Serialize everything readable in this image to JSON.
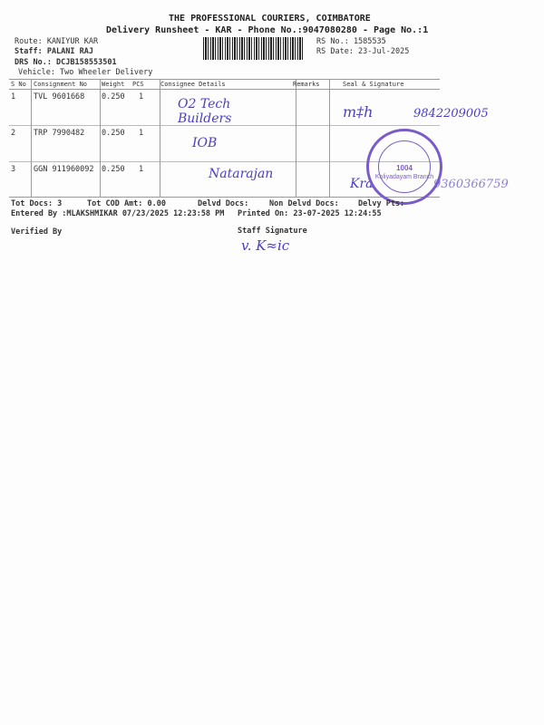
{
  "header": {
    "company": "THE PROFESSIONAL COURIERS, COIMBATORE",
    "subtitle": "Delivery Runsheet - KAR - Phone No.:9047080280 - Page No.:1",
    "route": "Route: KANIYUR KAR",
    "staff": "Staff: PALANI RAJ",
    "drs": "DRS No.: DCJB158553501",
    "vehicle": "Vehicle: Two Wheeler Delivery",
    "rs_no": "RS No.: 1585535",
    "rs_date": "RS Date: 23-Jul-2025"
  },
  "table": {
    "columns": [
      "S No",
      "Consignment No",
      "Weight",
      "PCS",
      "Consignee Details",
      "Remarks",
      "Seal & Signature"
    ],
    "rows": [
      {
        "sno": "1",
        "consignment": "TVL 9601668",
        "weight": "0.250",
        "pcs": "1",
        "consignee_handwritten": "O2 Tech Builders",
        "signature_phone": "9842209005"
      },
      {
        "sno": "2",
        "consignment": "TRP 7990482",
        "weight": "0.250",
        "pcs": "1",
        "consignee_handwritten": "IOB"
      },
      {
        "sno": "3",
        "consignment": "GGN 911960092",
        "weight": "0.250",
        "pcs": "1",
        "consignee_handwritten": "Natarajan",
        "signature_phone": "9360366759"
      }
    ]
  },
  "stamp": {
    "text": "1004",
    "branch": "Koliyadayam Branch"
  },
  "footer": {
    "tot_docs": "Tot Docs:   3",
    "tot_cod": "Tot COD Amt:    0.00",
    "delvd": "Delvd Docs:",
    "non_delvd": "Non Delvd Docs:",
    "delvy_pts": "Delvy Pts:",
    "entered_by": "Entered By :MLAKSHMIKAR 07/23/2025 12:23:58 PM",
    "printed_on": "Printed On: 23-07-2025 12:24:55",
    "verified_by": "Verified By",
    "staff_signature": "Staff Signature"
  }
}
